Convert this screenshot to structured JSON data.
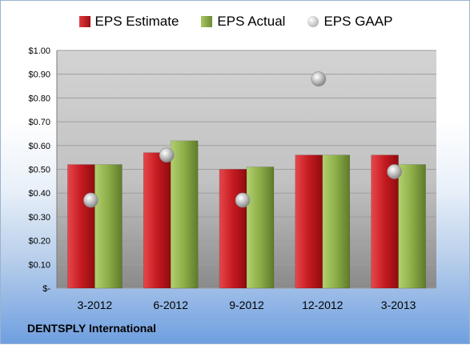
{
  "chart_data": {
    "type": "bar",
    "categories": [
      "3-2012",
      "6-2012",
      "9-2012",
      "12-2012",
      "3-2013"
    ],
    "series": [
      {
        "name": "EPS Estimate",
        "type": "bar",
        "color": "#c0161c",
        "values": [
          0.52,
          0.57,
          0.5,
          0.56,
          0.56
        ]
      },
      {
        "name": "EPS Actual",
        "type": "bar",
        "color": "#8cad48",
        "values": [
          0.52,
          0.62,
          0.51,
          0.56,
          0.52
        ]
      },
      {
        "name": "EPS GAAP",
        "type": "scatter",
        "color": "#b8b8b8",
        "values": [
          0.37,
          0.56,
          0.37,
          0.88,
          0.49
        ]
      }
    ],
    "ylim": [
      0,
      1.0
    ],
    "yticks": [
      1.0,
      0.9,
      0.8,
      0.7,
      0.6,
      0.5,
      0.4,
      0.3,
      0.2,
      0.1,
      0
    ],
    "ytick_labels": [
      "$1.00",
      "$0.90",
      "$0.80",
      "$0.70",
      "$0.60",
      "$0.50",
      "$0.40",
      "$0.30",
      "$0.20",
      "$0.10",
      "$-"
    ],
    "grid": true,
    "legend_position": "top"
  },
  "company_label": "DENTSPLY International"
}
